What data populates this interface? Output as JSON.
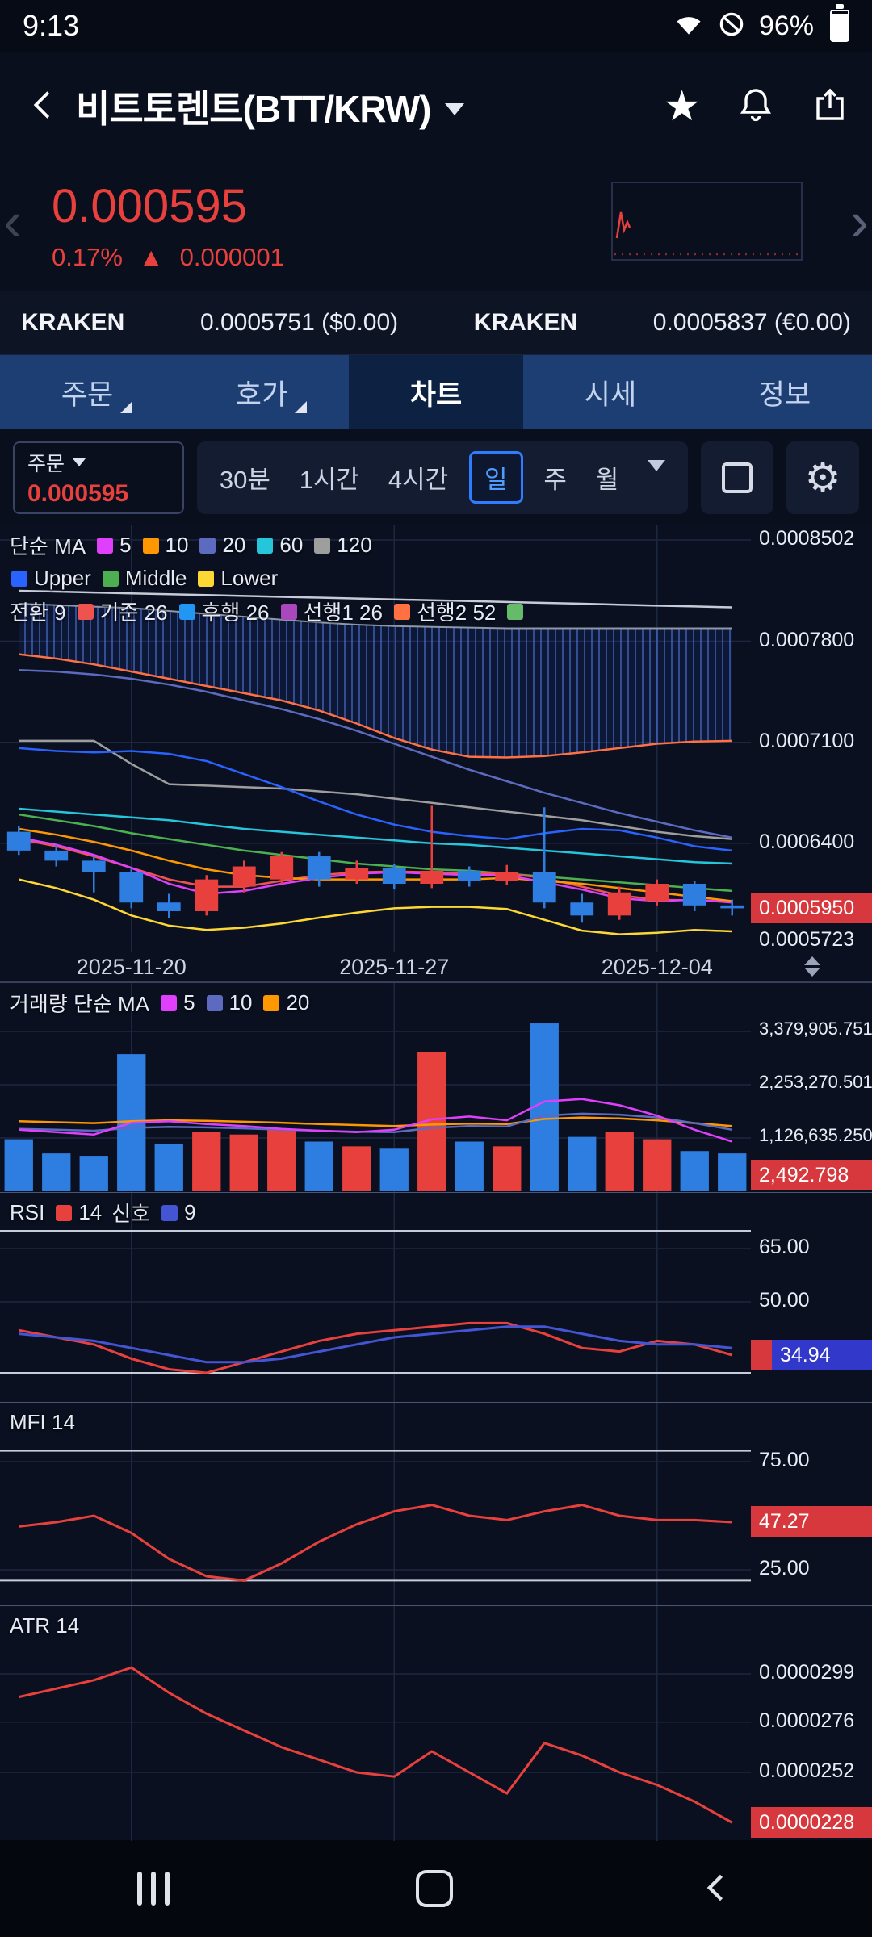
{
  "palette": {
    "background": "#0a0f1e",
    "chart_background": "#0a1020",
    "up_red": "#e8413d",
    "down_blue": "#2e7de1",
    "accent_blue": "#2f7dff",
    "badge_red": "#d6383e",
    "badge_blue": "#3238c9",
    "tab_bar": "#1c3e72",
    "tab_active_bg": "#0d2143"
  },
  "status_bar": {
    "time": "9:13",
    "battery_pct": "96%",
    "icons": [
      "wifi-icon",
      "do-not-disturb-icon",
      "battery-icon"
    ]
  },
  "header": {
    "title": "비트토렌트(BTT/KRW)",
    "icons": [
      "back-icon",
      "chevron-down-icon",
      "star-icon",
      "bell-icon",
      "share-icon"
    ]
  },
  "price_summary": {
    "price": "0.000595",
    "change_pct": "0.17%",
    "change_arrow": "▲",
    "change_abs": "0.000001",
    "prev_chevron": "‹",
    "next_chevron": "›"
  },
  "exchange_row": [
    {
      "name": "KRAKEN",
      "price": "0.0005751 ($0.00)"
    },
    {
      "name": "KRAKEN",
      "price": "0.0005837 (€0.00)"
    }
  ],
  "nav_tabs": [
    {
      "key": "order",
      "label": "주문",
      "fold": true,
      "active": false
    },
    {
      "key": "orderbook",
      "label": "호가",
      "fold": true,
      "active": false
    },
    {
      "key": "chart",
      "label": "차트",
      "fold": false,
      "active": true
    },
    {
      "key": "market",
      "label": "시세",
      "fold": false,
      "active": false
    },
    {
      "key": "info",
      "label": "정보",
      "fold": false,
      "active": false
    }
  ],
  "toolbar": {
    "order_label": "주문",
    "order_price": "0.000595",
    "timeframes": [
      {
        "key": "30m",
        "label": "30분",
        "selected": false
      },
      {
        "key": "1h",
        "label": "1시간",
        "selected": false
      },
      {
        "key": "4h",
        "label": "4시간",
        "selected": false
      },
      {
        "key": "1d",
        "label": "일",
        "selected": true
      },
      {
        "key": "1w",
        "label": "주",
        "selected": false
      },
      {
        "key": "1mo",
        "label": "월",
        "selected": false
      }
    ],
    "icons": [
      "chevron-down-icon",
      "chart-style-icon",
      "gear-icon"
    ]
  },
  "chart_data": {
    "date_axis_labels": [
      "2025-11-20",
      "2025-11-27",
      "2025-12-04"
    ],
    "main": {
      "type": "candlestick",
      "value_unit": "1e-7 KRW",
      "dates": [
        "2025-11-17",
        "2025-11-18",
        "2025-11-19",
        "2025-11-20",
        "2025-11-21",
        "2025-11-22",
        "2025-11-23",
        "2025-11-24",
        "2025-11-25",
        "2025-11-26",
        "2025-11-27",
        "2025-11-28",
        "2025-11-29",
        "2025-11-30",
        "2025-12-01",
        "2025-12-02",
        "2025-12-03",
        "2025-12-04",
        "2025-12-05",
        "2025-12-06"
      ],
      "candles": {
        "open": [
          6480,
          6350,
          6280,
          6200,
          5990,
          5930,
          6100,
          6150,
          6310,
          6150,
          6230,
          6120,
          6210,
          6140,
          6200,
          5990,
          5900,
          6000,
          6120,
          5970
        ],
        "high": [
          6520,
          6390,
          6310,
          6230,
          6050,
          6180,
          6280,
          6340,
          6340,
          6280,
          6260,
          6660,
          6240,
          6250,
          6650,
          6050,
          6100,
          6150,
          6140,
          6010
        ],
        "low": [
          6320,
          6240,
          6060,
          5950,
          5880,
          5900,
          6060,
          6120,
          6100,
          6120,
          6080,
          6090,
          6100,
          6110,
          5950,
          5850,
          5870,
          5970,
          5930,
          5900
        ],
        "close": [
          6350,
          6280,
          6200,
          5990,
          5930,
          6150,
          6240,
          6310,
          6150,
          6230,
          6120,
          6210,
          6140,
          6200,
          5990,
          5900,
          6060,
          6120,
          5970,
          5950
        ]
      },
      "y_axis_labels": [
        {
          "text": "0.0008502",
          "value": 8502
        },
        {
          "text": "0.0007800",
          "value": 7800
        },
        {
          "text": "0.0007100",
          "value": 7100
        },
        {
          "text": "0.0006400",
          "value": 6400
        },
        {
          "text": "0.0005723",
          "value": 5723
        }
      ],
      "current_price_badge": {
        "text": "0.0005950",
        "value": 5950
      },
      "h_gridlines": [
        8502,
        7800,
        7100,
        6400
      ],
      "legend_rows": [
        [
          {
            "text": "단순 MA"
          },
          {
            "chip": "#e040fb"
          },
          {
            "text": "5"
          },
          {
            "chip": "#ff9800"
          },
          {
            "text": "10"
          },
          {
            "chip": "#5c6bc0"
          },
          {
            "text": "20"
          },
          {
            "chip": "#26c6da"
          },
          {
            "text": "60"
          },
          {
            "chip": "#9e9e9e"
          },
          {
            "text": "120"
          }
        ],
        [
          {
            "chip": "#2962ff"
          },
          {
            "text": "Upper"
          },
          {
            "chip": "#4caf50"
          },
          {
            "text": "Middle"
          },
          {
            "chip": "#fdd835"
          },
          {
            "text": "Lower"
          }
        ],
        [
          {
            "text": "전환 9"
          },
          {
            "chip": "#ef5350"
          },
          {
            "text": "기준 26"
          },
          {
            "chip": "#2196f3"
          },
          {
            "text": "후행 26"
          },
          {
            "chip": "#ab47bc"
          },
          {
            "text": "선행1 26"
          },
          {
            "chip": "#ff7043"
          },
          {
            "text": "선행2 52"
          },
          {
            "chip": "#66bb6a"
          }
        ]
      ],
      "overlays": [
        {
          "name": "trend-long",
          "color": "#c5ccd8",
          "values": [
            8150,
            8144,
            8138,
            8132,
            8126,
            8120,
            8114,
            8108,
            8102,
            8096,
            8090,
            8084,
            8078,
            8072,
            8066,
            8060,
            8053,
            8047,
            8041,
            8035
          ]
        },
        {
          "name": "sma120",
          "color": "#9e9e9e",
          "values": [
            7110,
            7110,
            7110,
            6950,
            6810,
            6800,
            6790,
            6780,
            6760,
            6740,
            6710,
            6680,
            6650,
            6620,
            6590,
            6560,
            6520,
            6480,
            6450,
            6430
          ]
        },
        {
          "name": "sma20",
          "color": "#5c6bc0",
          "values": [
            7600,
            7590,
            7570,
            7540,
            7500,
            7450,
            7390,
            7330,
            7260,
            7180,
            7090,
            7000,
            6910,
            6830,
            6750,
            6680,
            6610,
            6550,
            6490,
            6440
          ]
        },
        {
          "name": "bb-upper",
          "color": "#2962ff",
          "values": [
            7060,
            7040,
            7030,
            7040,
            7020,
            6970,
            6880,
            6790,
            6690,
            6600,
            6530,
            6480,
            6450,
            6430,
            6470,
            6500,
            6490,
            6440,
            6380,
            6350
          ]
        },
        {
          "name": "sma60",
          "color": "#26c6da",
          "values": [
            6640,
            6620,
            6600,
            6580,
            6560,
            6530,
            6500,
            6480,
            6460,
            6440,
            6420,
            6400,
            6390,
            6370,
            6350,
            6330,
            6310,
            6290,
            6270,
            6260
          ]
        },
        {
          "name": "bb-middle",
          "color": "#4caf50",
          "values": [
            6600,
            6560,
            6520,
            6470,
            6430,
            6390,
            6350,
            6320,
            6290,
            6260,
            6240,
            6220,
            6210,
            6190,
            6170,
            6150,
            6130,
            6110,
            6090,
            6070
          ]
        },
        {
          "name": "bb-lower",
          "color": "#fdd835",
          "values": [
            6150,
            6090,
            6010,
            5900,
            5830,
            5800,
            5815,
            5845,
            5885,
            5920,
            5950,
            5960,
            5960,
            5945,
            5870,
            5795,
            5770,
            5780,
            5800,
            5790
          ]
        },
        {
          "name": "tenkan",
          "color": "#ef5350",
          "values": [
            6430,
            6380,
            6310,
            6230,
            6150,
            6100,
            6100,
            6140,
            6180,
            6200,
            6205,
            6200,
            6195,
            6190,
            6160,
            6100,
            6040,
            6010,
            6005,
            5995
          ]
        },
        {
          "name": "sma10",
          "color": "#ff9800",
          "values": [
            6500,
            6460,
            6410,
            6350,
            6280,
            6220,
            6180,
            6160,
            6150,
            6150,
            6150,
            6150,
            6150,
            6160,
            6140,
            6120,
            6090,
            6060,
            6030,
            6000
          ]
        },
        {
          "name": "sma5",
          "color": "#e040fb",
          "values": [
            6440,
            6390,
            6320,
            6230,
            6120,
            6050,
            6070,
            6120,
            6160,
            6190,
            6200,
            6190,
            6180,
            6180,
            6130,
            6080,
            6020,
            6000,
            6010,
            5990
          ]
        }
      ],
      "cloud": {
        "span_a_color": "#ff7043",
        "span_b_color": "#8d99a8",
        "top": [
          8060,
          8050,
          8040,
          8030,
          8010,
          7990,
          7970,
          7950,
          7930,
          7915,
          7905,
          7900,
          7895,
          7890,
          7890,
          7890,
          7890,
          7890,
          7890,
          7890
        ],
        "bottom": [
          7710,
          7680,
          7640,
          7590,
          7540,
          7490,
          7440,
          7390,
          7320,
          7230,
          7130,
          7050,
          7000,
          6995,
          7005,
          7030,
          7060,
          7090,
          7105,
          7110
        ]
      }
    },
    "volume": {
      "type": "bar",
      "value_unit": "millions",
      "values": [
        1.1,
        0.8,
        0.75,
        2.9,
        1.0,
        1.25,
        1.2,
        1.3,
        1.05,
        0.95,
        0.9,
        2.95,
        1.05,
        0.95,
        3.55,
        1.15,
        1.25,
        1.1,
        0.85,
        0.8
      ],
      "y_axis_labels": [
        {
          "text": "3,379,905.751",
          "value": 3.379905751
        },
        {
          "text": "2,253,270.501",
          "value": 2.253270501
        },
        {
          "text": "1,126,635.250",
          "value": 1.12663525
        }
      ],
      "current_badge": {
        "text": "2,492.798"
      },
      "legend_rows": [
        [
          {
            "text": "거래량 단순 MA"
          },
          {
            "chip": "#e040fb"
          },
          {
            "text": "5"
          },
          {
            "chip": "#5c6bc0"
          },
          {
            "text": "10"
          },
          {
            "chip": "#ff9800"
          },
          {
            "text": "20"
          }
        ]
      ],
      "ma": [
        {
          "name": "vol-ma20",
          "color": "#ff9800",
          "values": [
            1.48,
            1.46,
            1.44,
            1.48,
            1.5,
            1.49,
            1.47,
            1.45,
            1.42,
            1.4,
            1.38,
            1.41,
            1.43,
            1.42,
            1.53,
            1.56,
            1.54,
            1.5,
            1.44,
            1.38
          ]
        },
        {
          "name": "vol-ma10",
          "color": "#5c6bc0",
          "values": [
            1.32,
            1.3,
            1.28,
            1.34,
            1.36,
            1.35,
            1.33,
            1.3,
            1.28,
            1.26,
            1.25,
            1.34,
            1.38,
            1.37,
            1.6,
            1.64,
            1.62,
            1.56,
            1.44,
            1.3
          ]
        },
        {
          "name": "vol-ma5",
          "color": "#e040fb",
          "values": [
            1.3,
            1.25,
            1.2,
            1.45,
            1.48,
            1.42,
            1.38,
            1.32,
            1.28,
            1.25,
            1.3,
            1.52,
            1.58,
            1.5,
            1.9,
            1.95,
            1.82,
            1.6,
            1.3,
            1.05
          ]
        }
      ]
    },
    "rsi": {
      "type": "line",
      "levels": [
        70,
        30
      ],
      "h_gridlines": [
        65,
        50
      ],
      "y_axis_labels": [
        {
          "text": "65.00",
          "value": 65
        },
        {
          "text": "50.00",
          "value": 50
        }
      ],
      "current_badge": {
        "text": "34.94",
        "value": 34.94
      },
      "legend_rows": [
        [
          {
            "text": "RSI"
          },
          {
            "chip": "#e8413d"
          },
          {
            "text": "14"
          },
          {
            "text": "신호"
          },
          {
            "chip": "#4455d4"
          },
          {
            "text": "9"
          }
        ]
      ],
      "series": [
        {
          "name": "rsi-14",
          "color": "#e8413d",
          "values": [
            42,
            40,
            38,
            34,
            31,
            30,
            33,
            36,
            39,
            41,
            42,
            43,
            44,
            44,
            41,
            37,
            36,
            39,
            38,
            35
          ]
        },
        {
          "name": "signal-9",
          "color": "#4455d4",
          "values": [
            41,
            40,
            39,
            37,
            35,
            33,
            33,
            34,
            36,
            38,
            40,
            41,
            42,
            43,
            43,
            41,
            39,
            38,
            38,
            37
          ]
        }
      ]
    },
    "mfi": {
      "type": "line",
      "levels": [
        80,
        20
      ],
      "h_gridlines": [
        75,
        25
      ],
      "y_axis_labels": [
        {
          "text": "75.00",
          "value": 75
        },
        {
          "text": "25.00",
          "value": 25
        }
      ],
      "current_badge": {
        "text": "47.27",
        "value": 47.27
      },
      "legend_rows": [
        [
          {
            "text": "MFI 14"
          }
        ]
      ],
      "series": [
        {
          "name": "mfi-14",
          "color": "#e8413d",
          "values": [
            45,
            47,
            50,
            42,
            30,
            22,
            20,
            28,
            38,
            46,
            52,
            55,
            50,
            48,
            52,
            55,
            50,
            48,
            48,
            47
          ]
        }
      ]
    },
    "atr": {
      "type": "line",
      "value_unit": "1e-7 KRW",
      "h_gridlines": [
        0.299,
        0.276,
        0.252
      ],
      "y_axis_labels": [
        {
          "text": "0.0000299",
          "value": 0.299
        },
        {
          "text": "0.0000276",
          "value": 0.276
        },
        {
          "text": "0.0000252",
          "value": 0.252
        }
      ],
      "current_badge": {
        "text": "0.0000228",
        "value": 0.228
      },
      "legend_rows": [
        [
          {
            "text": "ATR 14"
          }
        ]
      ],
      "series": [
        {
          "name": "atr-14",
          "color": "#e8413d",
          "values": [
            0.288,
            0.292,
            0.296,
            0.302,
            0.29,
            0.28,
            0.272,
            0.264,
            0.258,
            0.252,
            0.25,
            0.262,
            0.252,
            0.242,
            0.266,
            0.26,
            0.252,
            0.246,
            0.238,
            0.228
          ]
        }
      ]
    }
  },
  "bottom_nav": {
    "icons": [
      "recent-apps-icon",
      "home-icon",
      "back-icon"
    ]
  }
}
